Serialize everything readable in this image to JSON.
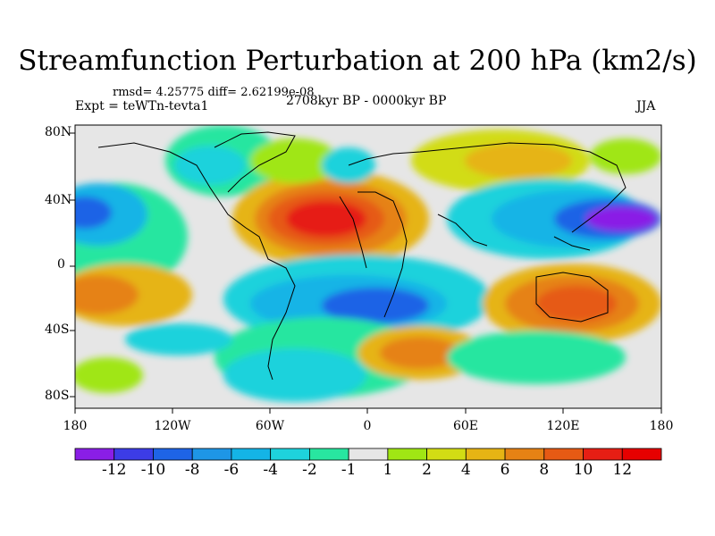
{
  "title": "Streamfunction Perturbation at 200 hPa (km2/s)",
  "stats": "rmsd= 4.25775  diff= 2.62199e-08",
  "experiment": "Expt = teWTn-tevta1",
  "period": "2708kyr BP - 0000kyr BP",
  "season": "JJA",
  "lat_labels": [
    "80N",
    "40N",
    "0",
    "40S",
    "80S"
  ],
  "lon_labels": [
    "180",
    "120W",
    "60W",
    "0",
    "60E",
    "120E",
    "180"
  ],
  "colorbar": {
    "labels": [
      "-12",
      "-10",
      "-8",
      "-6",
      "-4",
      "-2",
      "-1",
      "1",
      "2",
      "4",
      "6",
      "8",
      "10",
      "12"
    ],
    "colors": [
      "#8a1ee6",
      "#3c3ce6",
      "#1e64e6",
      "#1e96e6",
      "#14b4e6",
      "#1ed2dc",
      "#28e6a0",
      "#e6e6e6",
      "#a0e614",
      "#d2dc14",
      "#e6b414",
      "#e68214",
      "#e65a14",
      "#e61e14",
      "#e60000"
    ]
  }
}
